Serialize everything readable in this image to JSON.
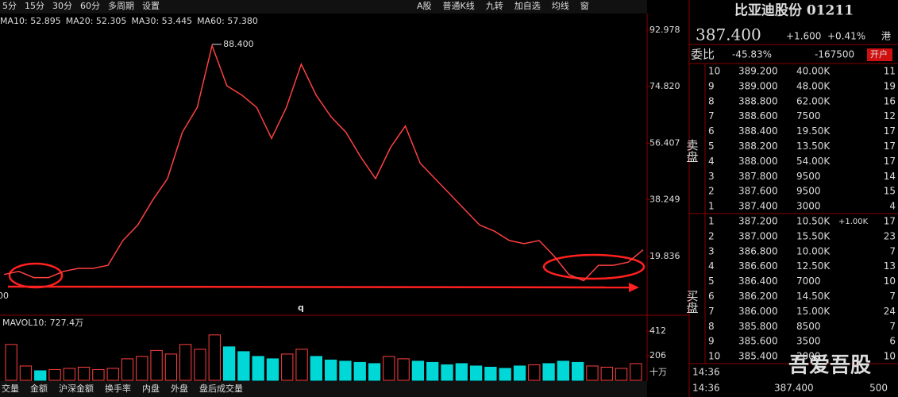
{
  "toolbar": {
    "periods": [
      "5分",
      "15分",
      "30分",
      "60分",
      "多周期",
      "设置"
    ],
    "tools": [
      "A股",
      "普通K线",
      "九转",
      "加自选",
      "均线",
      "窗"
    ]
  },
  "chart_data": [
    {
      "type": "line",
      "color": "#ff4040",
      "ma_legend": [
        {
          "label": "MA10: 52.895",
          "color": "#e8e800"
        },
        {
          "label": "MA20: 52.305",
          "color": "#ff50ff"
        },
        {
          "label": "MA30: 53.445",
          "color": "#00e600"
        },
        {
          "label": "MA60: 57.380",
          "color": "#40d0ff"
        }
      ],
      "values": [
        14,
        15,
        13,
        13,
        15,
        16,
        16,
        17,
        25,
        30,
        38,
        45,
        60,
        68,
        88,
        75,
        72,
        68,
        58,
        68,
        82,
        72,
        65,
        60,
        52,
        45,
        55,
        62,
        50,
        45,
        40,
        35,
        30,
        28,
        25,
        24,
        25,
        20,
        14,
        12,
        17,
        17,
        18,
        22
      ],
      "ylim": [
        1.36,
        98.11
      ],
      "yticks": [
        92.978,
        {
          "value": 74.82,
          "label": "74.820"
        },
        56.407,
        38.249,
        19.836
      ],
      "max_label": {
        "value": 88.4,
        "label": "88.400"
      },
      "marker": "q",
      "cut_label": "00"
    },
    {
      "type": "bar",
      "title": "MAVOL10: 727.4万",
      "up_color": "#ff4040",
      "down_color": "#00d8d8",
      "values": [
        300,
        120,
        80,
        90,
        100,
        110,
        90,
        100,
        180,
        200,
        250,
        220,
        300,
        260,
        380,
        280,
        240,
        200,
        180,
        220,
        260,
        200,
        170,
        160,
        150,
        140,
        200,
        180,
        160,
        150,
        130,
        140,
        120,
        110,
        100,
        120,
        130,
        140,
        160,
        150,
        120,
        110,
        100,
        140
      ],
      "ylim": [
        0,
        525
      ],
      "yticks": [
        412,
        206
      ],
      "unit": "十万"
    }
  ],
  "indicator_tabs": [
    "交量",
    "金额",
    "沪深金额",
    "换手率",
    "内盘",
    "外盘",
    "盘后成交量"
  ],
  "quote": {
    "name": "比亚迪股份 01211",
    "price": "387.400",
    "change": "+1.600",
    "change_pct": "+0.41%",
    "market": "港",
    "ratio_label": "委比",
    "ratio": "-45.83%",
    "diff": "-167500",
    "open_account": "开户",
    "sell_label": "卖盘",
    "buy_label": "买盘",
    "sell": [
      [
        "10",
        "389.200",
        "40.00K",
        "11"
      ],
      [
        "9",
        "389.000",
        "48.00K",
        "19"
      ],
      [
        "8",
        "388.800",
        "62.00K",
        "16"
      ],
      [
        "7",
        "388.600",
        "7500",
        "12"
      ],
      [
        "6",
        "388.400",
        "19.50K",
        "17"
      ],
      [
        "5",
        "388.200",
        "13.50K",
        "17"
      ],
      [
        "4",
        "388.000",
        "54.00K",
        "17"
      ],
      [
        "3",
        "387.800",
        "9500",
        "14"
      ],
      [
        "2",
        "387.600",
        "9500",
        "15"
      ],
      [
        "1",
        "387.400",
        "3000",
        "4"
      ]
    ],
    "buy": [
      [
        "1",
        "387.200",
        "10.50K",
        "17"
      ],
      [
        "2",
        "387.000",
        "15.50K",
        "23"
      ],
      [
        "3",
        "386.800",
        "10.00K",
        "7"
      ],
      [
        "4",
        "386.600",
        "12.50K",
        "13"
      ],
      [
        "5",
        "386.400",
        "7000",
        "10"
      ],
      [
        "6",
        "386.200",
        "14.50K",
        "7"
      ],
      [
        "7",
        "386.000",
        "15.00K",
        "24"
      ],
      [
        "8",
        "385.800",
        "8500",
        "7"
      ],
      [
        "9",
        "385.600",
        "3500",
        "6"
      ],
      [
        "10",
        "385.400",
        "2000",
        "10"
      ]
    ],
    "buy_price_colors": [
      "#ff4040",
      "#ff4040",
      "#ff4040",
      "#ff4040",
      "#ff4040",
      "#ff4040",
      "#ff4040",
      "#e0e0e0",
      "#00e000",
      "#00e000"
    ],
    "buy_change_note": "+1.00K",
    "ticks": [
      [
        "14:36",
        "",
        ""
      ],
      [
        "14:36",
        "387.400",
        "500"
      ]
    ]
  },
  "watermark": "吾爱吾股"
}
